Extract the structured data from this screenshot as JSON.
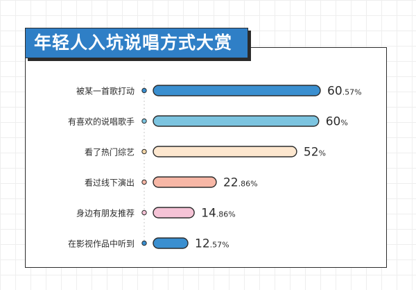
{
  "title": "年轻人入坑说唱方式大赏",
  "chart_data": {
    "type": "bar",
    "orientation": "horizontal",
    "title": "年轻人入坑说唱方式大赏",
    "xlabel": "",
    "ylabel": "",
    "grid": false,
    "legend": "none",
    "unit": "%",
    "categories": [
      "被某一首歌打动",
      "有喜欢的说唱歌手",
      "看了热门综艺",
      "看过线下演出",
      "身边有朋友推荐",
      "在影视作品中听到"
    ],
    "values": [
      60.57,
      60,
      52,
      22.86,
      14.86,
      12.57
    ],
    "labels": [
      {
        "int": "60",
        "dec": ".57%"
      },
      {
        "int": "60",
        "dec": "%"
      },
      {
        "int": "52",
        "dec": "%"
      },
      {
        "int": "22",
        "dec": ".86%"
      },
      {
        "int": "14",
        "dec": ".86%"
      },
      {
        "int": "12",
        "dec": ".57%"
      }
    ],
    "colors": [
      "#3a8fd0",
      "#7cc4e0",
      "#fde7cf",
      "#f7b7a6",
      "#f5c3d6",
      "#3a8fd0"
    ],
    "dot_colors": [
      "#3a8fd0",
      "#7cc4e0",
      "#f3d6a8",
      "#f7b7a6",
      "#f5c3d6",
      "#3a8fd0"
    ],
    "xlim": [
      0,
      60.57
    ]
  }
}
